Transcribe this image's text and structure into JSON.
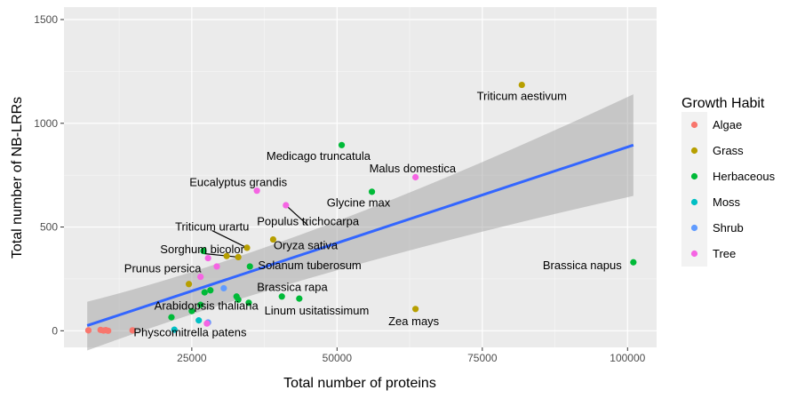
{
  "chart_data": {
    "type": "scatter",
    "title": "",
    "xlabel": "Total number of proteins",
    "ylabel": "Total number of NB-LRRs",
    "xlim": [
      3000,
      105000
    ],
    "ylim": [
      -80,
      1560
    ],
    "x_ticks": [
      25000,
      50000,
      75000,
      100000
    ],
    "x_tick_labels": [
      "25000",
      "50000",
      "75000",
      "100000"
    ],
    "y_ticks": [
      0,
      500,
      1000,
      1500
    ],
    "y_tick_labels": [
      "0",
      "500",
      "1000",
      "1500"
    ],
    "grid": true,
    "legend": {
      "title": "Growth Habit",
      "position": "right",
      "items": [
        {
          "label": "Algae",
          "color": "#F8766D"
        },
        {
          "label": "Grass",
          "color": "#B79F00"
        },
        {
          "label": "Herbaceous",
          "color": "#00BA38"
        },
        {
          "label": "Moss",
          "color": "#00BFC4"
        },
        {
          "label": "Shrub",
          "color": "#619CFF"
        },
        {
          "label": "Tree",
          "color": "#F564E3"
        }
      ]
    },
    "regression": {
      "x": [
        7000,
        101000
      ],
      "y": [
        25,
        895
      ],
      "ci_lower": [
        -95,
        650
      ],
      "ci_upper": [
        140,
        1140
      ],
      "color": "#3366FF"
    },
    "points": [
      {
        "x": 7200,
        "y": 2,
        "group": "Algae"
      },
      {
        "x": 9300,
        "y": 4,
        "group": "Algae"
      },
      {
        "x": 9800,
        "y": 1,
        "group": "Algae"
      },
      {
        "x": 10200,
        "y": 3,
        "group": "Algae"
      },
      {
        "x": 10600,
        "y": 0,
        "group": "Algae"
      },
      {
        "x": 14800,
        "y": 2,
        "group": "Algae"
      },
      {
        "x": 81800,
        "y": 1185,
        "group": "Grass"
      },
      {
        "x": 63500,
        "y": 105,
        "group": "Grass"
      },
      {
        "x": 39000,
        "y": 440,
        "group": "Grass"
      },
      {
        "x": 34500,
        "y": 400,
        "group": "Grass"
      },
      {
        "x": 31000,
        "y": 360,
        "group": "Grass"
      },
      {
        "x": 33000,
        "y": 355,
        "group": "Grass"
      },
      {
        "x": 24500,
        "y": 225,
        "group": "Grass"
      },
      {
        "x": 50800,
        "y": 895,
        "group": "Herbaceous"
      },
      {
        "x": 56000,
        "y": 670,
        "group": "Herbaceous"
      },
      {
        "x": 101000,
        "y": 330,
        "group": "Herbaceous"
      },
      {
        "x": 40500,
        "y": 165,
        "group": "Herbaceous"
      },
      {
        "x": 43500,
        "y": 155,
        "group": "Herbaceous"
      },
      {
        "x": 35000,
        "y": 310,
        "group": "Herbaceous"
      },
      {
        "x": 27000,
        "y": 385,
        "group": "Herbaceous"
      },
      {
        "x": 27200,
        "y": 185,
        "group": "Herbaceous"
      },
      {
        "x": 28200,
        "y": 195,
        "group": "Herbaceous"
      },
      {
        "x": 32700,
        "y": 165,
        "group": "Herbaceous"
      },
      {
        "x": 33000,
        "y": 150,
        "group": "Herbaceous"
      },
      {
        "x": 34800,
        "y": 135,
        "group": "Herbaceous"
      },
      {
        "x": 25000,
        "y": 95,
        "group": "Herbaceous"
      },
      {
        "x": 21500,
        "y": 65,
        "group": "Herbaceous"
      },
      {
        "x": 26500,
        "y": 125,
        "group": "Herbaceous"
      },
      {
        "x": 22000,
        "y": 5,
        "group": "Moss"
      },
      {
        "x": 26200,
        "y": 50,
        "group": "Moss"
      },
      {
        "x": 30500,
        "y": 205,
        "group": "Shrub"
      },
      {
        "x": 27800,
        "y": 40,
        "group": "Shrub"
      },
      {
        "x": 63500,
        "y": 740,
        "group": "Tree"
      },
      {
        "x": 36200,
        "y": 675,
        "group": "Tree"
      },
      {
        "x": 41200,
        "y": 605,
        "group": "Tree"
      },
      {
        "x": 27800,
        "y": 350,
        "group": "Tree"
      },
      {
        "x": 29300,
        "y": 310,
        "group": "Tree"
      },
      {
        "x": 26500,
        "y": 260,
        "group": "Tree"
      },
      {
        "x": 27600,
        "y": 35,
        "group": "Tree"
      }
    ],
    "labels": [
      {
        "text": "Triticum aestivum",
        "x": 81800,
        "y": 1130,
        "italic": false
      },
      {
        "text": "Medicago truncatula",
        "x": 46800,
        "y": 840,
        "italic": false
      },
      {
        "text": "Malus domestica",
        "x": 63000,
        "y": 780,
        "italic": false
      },
      {
        "text": "Eucalyptus grandis",
        "x": 33000,
        "y": 715,
        "italic": false
      },
      {
        "text": "Glycine max",
        "x": 53700,
        "y": 615,
        "italic": false
      },
      {
        "text": "Populus trichocarpa",
        "x": 45000,
        "y": 525,
        "italic": false,
        "line_to": [
          41200,
          605
        ]
      },
      {
        "text": "Triticum urartu",
        "x": 28500,
        "y": 500,
        "italic": false,
        "line_to": [
          34500,
          400
        ]
      },
      {
        "text": "Oryza sativa",
        "x": 44600,
        "y": 410,
        "italic": false
      },
      {
        "text": "Sorghum bicolor",
        "x": 26800,
        "y": 390,
        "italic": false,
        "line_to": [
          33000,
          355
        ]
      },
      {
        "text": "Solanum tuberosum",
        "x": 45300,
        "y": 315,
        "italic": false
      },
      {
        "text": "Prunus persica",
        "x": 20000,
        "y": 300,
        "italic": false
      },
      {
        "text": "Brassica napus",
        "x": 92200,
        "y": 315,
        "italic": false
      },
      {
        "text": "Brassica rapa",
        "x": 42300,
        "y": 210,
        "italic": false
      },
      {
        "text": "Arabidopsis thaliana",
        "x": 27500,
        "y": 120,
        "italic": false
      },
      {
        "text": "Linum usitatissimum",
        "x": 46500,
        "y": 95,
        "italic": false
      },
      {
        "text": "Zea mays",
        "x": 63200,
        "y": 45,
        "italic": false
      },
      {
        "text": "Physcomitrella patens",
        "x": 24700,
        "y": -10,
        "italic": false
      }
    ]
  }
}
